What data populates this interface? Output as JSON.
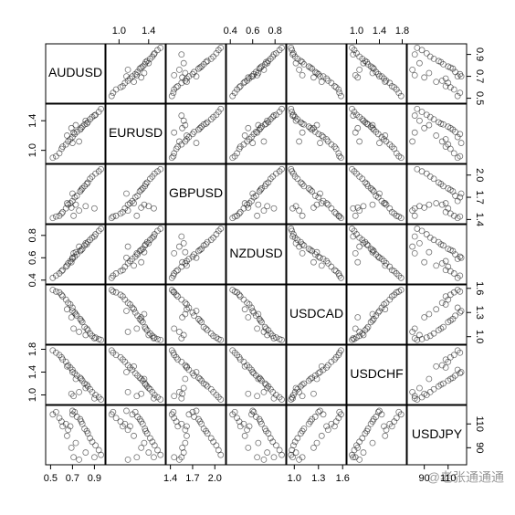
{
  "chart_data": {
    "type": "scatter_matrix",
    "watermark": "@老张通通通",
    "point_color": "rgba(0,0,0,0.55)",
    "variables": [
      {
        "name": "AUDUSD",
        "lim": [
          0.48,
          0.98
        ],
        "ticks": [
          0.5,
          0.7,
          0.9
        ],
        "values": [
          0.52,
          0.55,
          0.58,
          0.6,
          0.61,
          0.64,
          0.66,
          0.68,
          0.7,
          0.72,
          0.74,
          0.77,
          0.78,
          0.79,
          0.81,
          0.83,
          0.84,
          0.86,
          0.88,
          0.91,
          0.94,
          0.96,
          0.76,
          0.71,
          0.69,
          0.65,
          0.73,
          0.82,
          0.9,
          0.7
        ]
      },
      {
        "name": "EURUSD",
        "lim": [
          0.86,
          1.6
        ],
        "ticks": [
          {
            "value": 1,
            "label": "1.0"
          },
          1.4
        ],
        "values": [
          0.9,
          0.92,
          0.96,
          1.02,
          1.05,
          1.08,
          1.12,
          1.15,
          1.18,
          1.22,
          1.25,
          1.28,
          1.3,
          1.32,
          1.35,
          1.36,
          1.38,
          1.42,
          1.45,
          1.48,
          1.52,
          1.56,
          1.12,
          1.24,
          1.3,
          1.2,
          1.34,
          1.4,
          1.47,
          1.1
        ]
      },
      {
        "name": "GBPUSD",
        "lim": [
          1.38,
          2.12
        ],
        "ticks": [
          1.4,
          1.7,
          {
            "value": 2,
            "label": "2.0"
          }
        ],
        "values": [
          1.42,
          1.44,
          1.45,
          1.48,
          1.5,
          1.55,
          1.6,
          1.62,
          1.65,
          1.7,
          1.72,
          1.78,
          1.8,
          1.82,
          1.85,
          1.88,
          1.9,
          1.95,
          1.98,
          2.02,
          2.05,
          2.08,
          1.52,
          1.45,
          1.56,
          1.62,
          1.6,
          1.58,
          1.55,
          1.75
        ]
      },
      {
        "name": "NZDUSD",
        "lim": [
          0.39,
          0.88
        ],
        "ticks": [
          0.4,
          0.6,
          0.8
        ],
        "values": [
          0.42,
          0.44,
          0.46,
          0.48,
          0.49,
          0.52,
          0.55,
          0.57,
          0.59,
          0.61,
          0.63,
          0.66,
          0.67,
          0.68,
          0.71,
          0.72,
          0.74,
          0.76,
          0.78,
          0.81,
          0.84,
          0.86,
          0.7,
          0.64,
          0.56,
          0.53,
          0.65,
          0.73,
          0.79,
          0.6
        ]
      },
      {
        "name": "USDCAD",
        "lim": [
          0.94,
          1.62
        ],
        "ticks": [
          {
            "value": 1,
            "label": "1.0"
          },
          1.3,
          1.6
        ],
        "values": [
          1.58,
          1.56,
          1.55,
          1.52,
          1.5,
          1.46,
          1.42,
          1.4,
          1.36,
          1.3,
          1.26,
          1.22,
          1.2,
          1.18,
          1.12,
          1.1,
          1.08,
          1.04,
          1.01,
          0.99,
          0.97,
          0.96,
          1.06,
          1.1,
          1.24,
          1.34,
          1.28,
          1.02,
          0.98,
          1.32
        ]
      },
      {
        "name": "USDCHF",
        "lim": [
          0.88,
          1.84
        ],
        "ticks": [
          {
            "value": 1,
            "label": "1.0"
          },
          1.4,
          1.8
        ],
        "values": [
          1.78,
          1.74,
          1.7,
          1.66,
          1.62,
          1.58,
          1.52,
          1.48,
          1.44,
          1.38,
          1.34,
          1.3,
          1.28,
          1.25,
          1.2,
          1.18,
          1.15,
          1.1,
          1.05,
          1,
          0.96,
          0.92,
          1.05,
          0.98,
          1.02,
          1.5,
          1.28,
          1.12,
          0.94,
          1.4
        ]
      },
      {
        "name": "USDJPY",
        "lim": [
          78,
          124
        ],
        "ticks": [
          90,
          110
        ],
        "values": [
          118,
          120,
          115,
          112,
          108,
          110,
          105,
          108,
          118,
          120,
          116,
          114,
          112,
          110,
          106,
          104,
          102,
          98,
          95,
          92,
          88,
          84,
          80,
          82,
          90,
          100,
          94,
          86,
          82,
          121
        ]
      }
    ]
  }
}
